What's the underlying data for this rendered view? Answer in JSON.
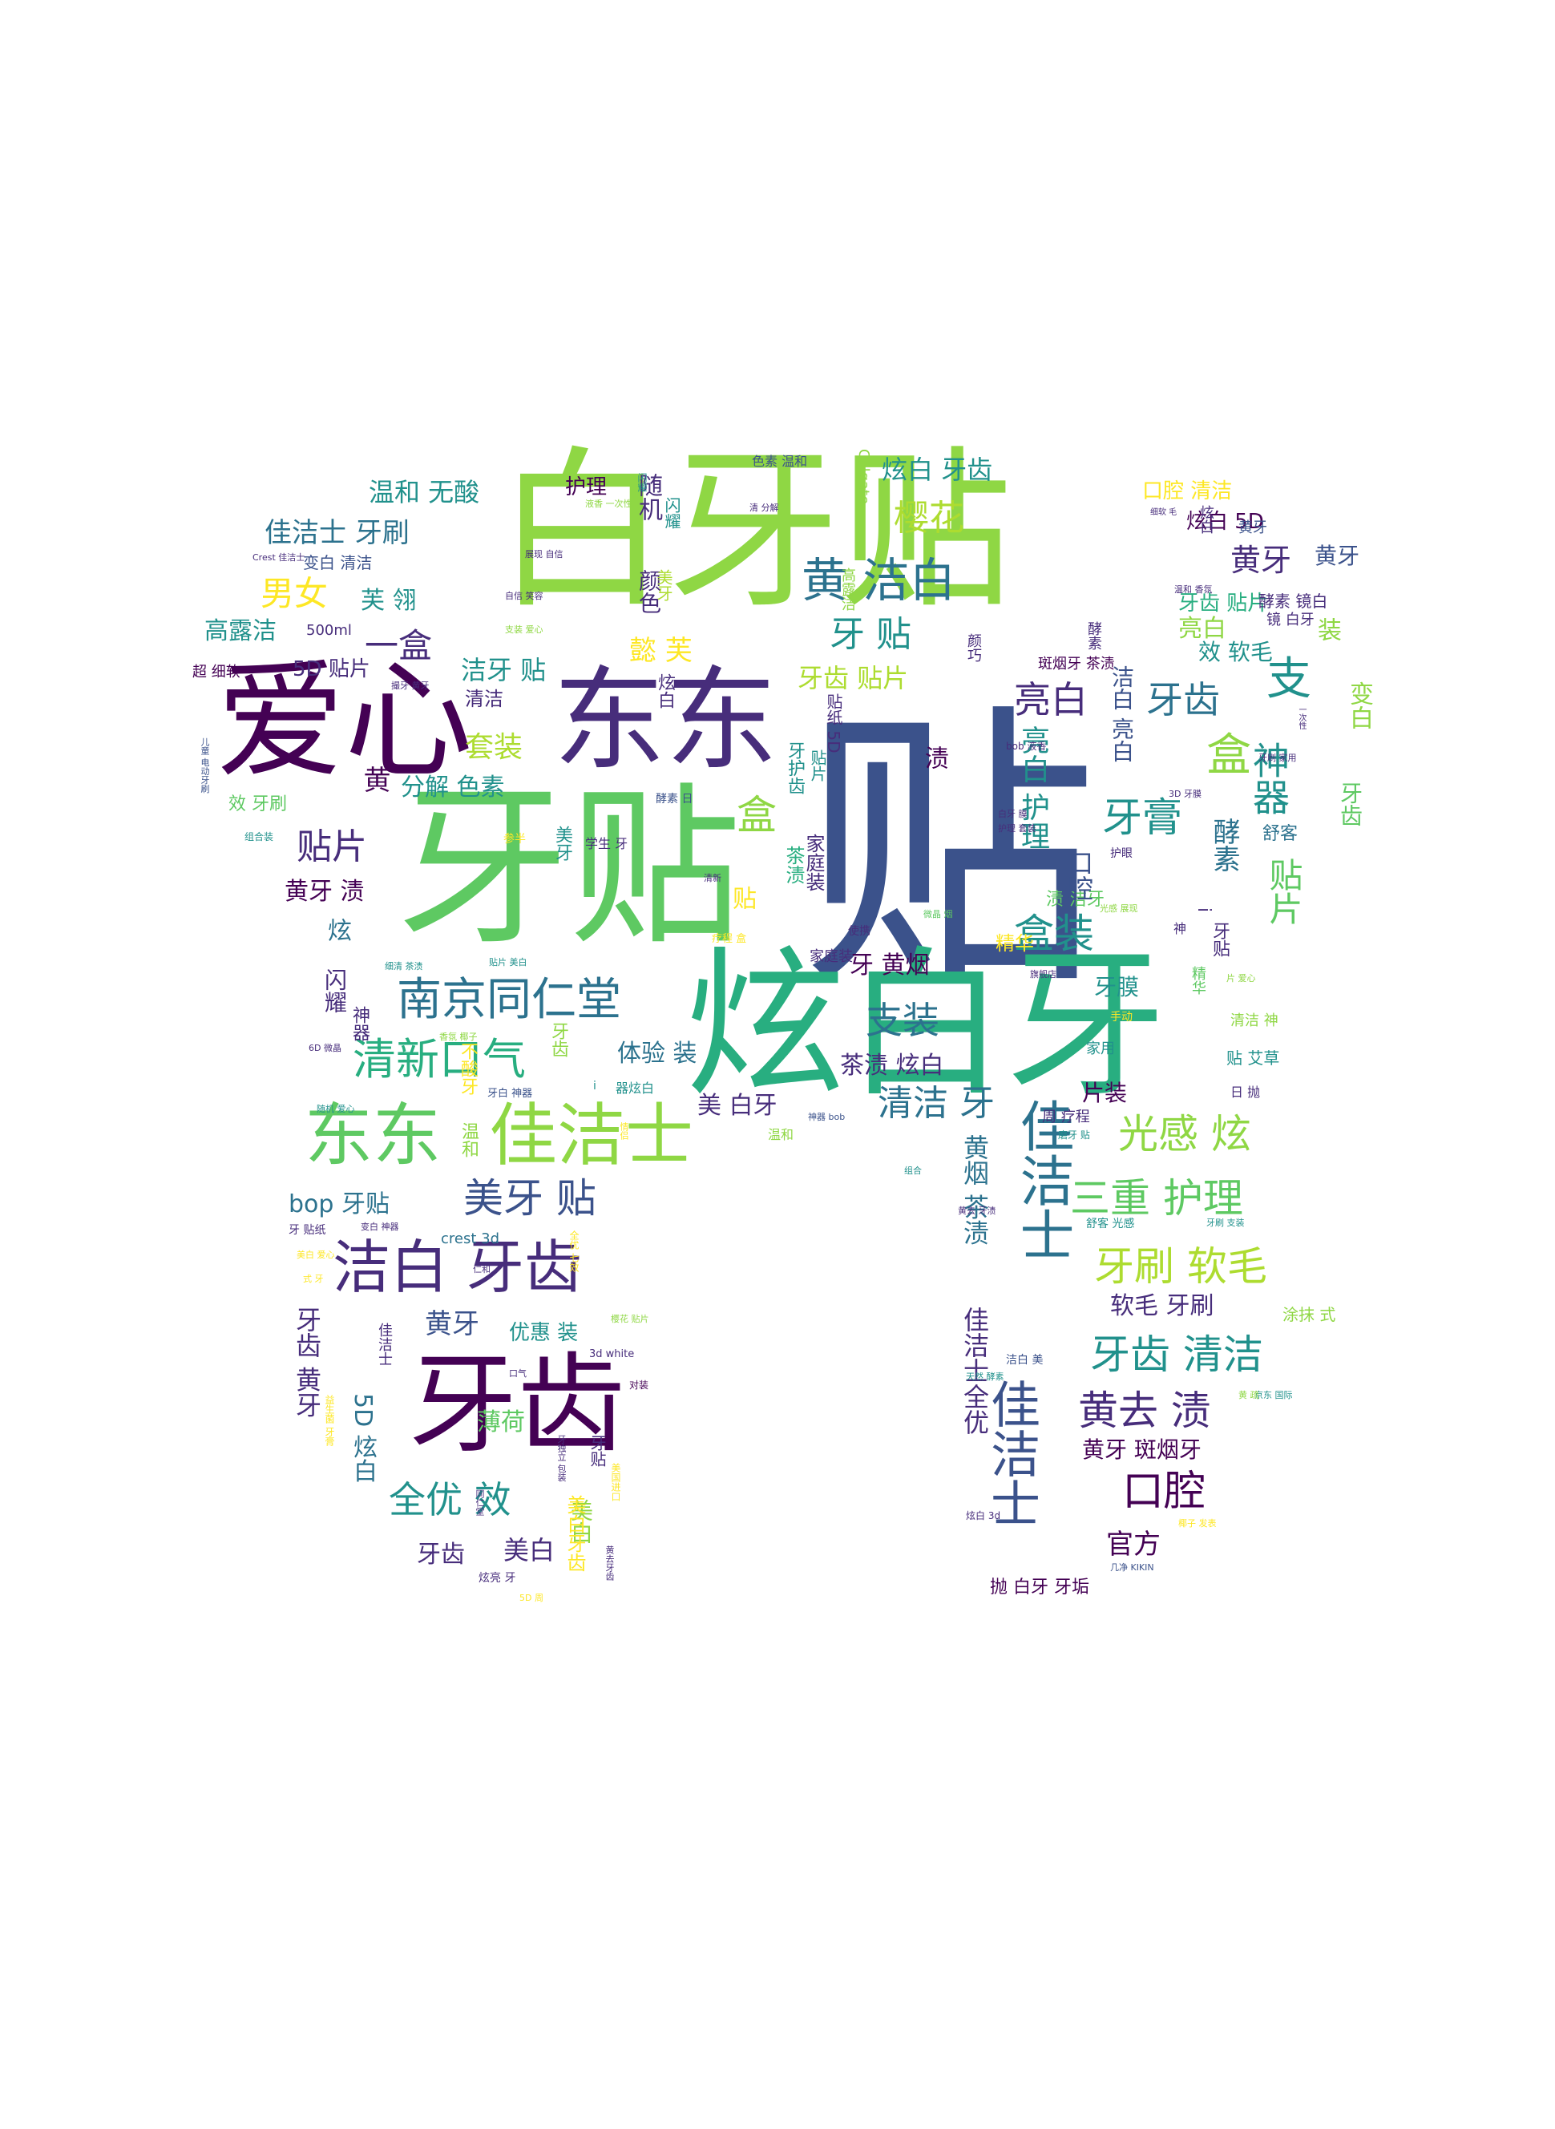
{
  "palette": [
    "#440154",
    "#3b528b",
    "#21918c",
    "#5ec962",
    "#fde725",
    "#8fd744",
    "#2c728e",
    "#472d7b",
    "#28ae80",
    "#addc30"
  ],
  "words": [
    {
      "text": "贴",
      "color": "#3b528b"
    },
    {
      "text": "白牙贴",
      "color": "#8fd744"
    },
    {
      "text": "牙贴",
      "color": "#5ec962"
    },
    {
      "text": "炫白牙",
      "color": "#28ae80"
    },
    {
      "text": "爱心",
      "color": "#440154"
    },
    {
      "text": "东东",
      "color": "#472d7b"
    },
    {
      "text": "牙齿",
      "color": "#440154"
    },
    {
      "text": "东东",
      "color": "#5ec962"
    },
    {
      "text": "佳洁士",
      "color": "#8fd744"
    },
    {
      "text": "洁白 牙齿",
      "color": "#472d7b"
    },
    {
      "text": "南京同仁堂",
      "color": "#2c728e"
    },
    {
      "text": "清新口气",
      "color": "#28ae80"
    },
    {
      "text": "黄 洁白",
      "color": "#2c728e"
    },
    {
      "text": "佳洁士",
      "color": "#2c728e"
    },
    {
      "text": "佳洁士",
      "color": "#3b528b"
    },
    {
      "text": "牙齿 清洁",
      "color": "#21918c"
    },
    {
      "text": "三重 护理",
      "color": "#5ec962"
    },
    {
      "text": "牙刷 软毛",
      "color": "#addc30"
    },
    {
      "text": "美牙 贴",
      "color": "#3b528b"
    },
    {
      "text": "光感 炫",
      "color": "#8fd744"
    },
    {
      "text": "全优 效",
      "color": "#21918c"
    },
    {
      "text": "口腔",
      "color": "#440154"
    },
    {
      "text": "黄去 渍",
      "color": "#472d7b"
    },
    {
      "text": "清洁 牙",
      "color": "#2c728e"
    },
    {
      "text": "支装",
      "color": "#2c728e"
    },
    {
      "text": "盒装",
      "color": "#21918c"
    },
    {
      "text": "牙膏",
      "color": "#21918c"
    },
    {
      "text": "亮白",
      "color": "#472d7b"
    },
    {
      "text": "牙齿",
      "color": "#2c728e"
    },
    {
      "text": "樱花",
      "color": "#addc30"
    },
    {
      "text": "牙 贴",
      "color": "#21918c"
    },
    {
      "text": "男女",
      "color": "#fde725"
    },
    {
      "text": "一盒",
      "color": "#472d7b"
    },
    {
      "text": "贴片",
      "color": "#472d7b"
    },
    {
      "text": "黄牙",
      "color": "#472d7b"
    },
    {
      "text": "套装",
      "color": "#addc30"
    },
    {
      "text": "盒",
      "color": "#8fd744"
    },
    {
      "text": "支",
      "color": "#21918c"
    },
    {
      "text": "炫白 牙齿",
      "color": "#21918c"
    },
    {
      "text": "佳洁士 牙刷",
      "color": "#2c728e"
    },
    {
      "text": "温和 无酸",
      "color": "#21918c"
    },
    {
      "text": "高露洁",
      "color": "#21918c"
    },
    {
      "text": "洁牙 贴",
      "color": "#21918c"
    },
    {
      "text": "牙齿 贴片",
      "color": "#addc30"
    },
    {
      "text": "懿 芙",
      "color": "#fde725"
    },
    {
      "text": "分解 色素",
      "color": "#21918c"
    },
    {
      "text": "黄牙 渍",
      "color": "#440154"
    },
    {
      "text": "牙 黄烟",
      "color": "#440154"
    },
    {
      "text": "茶渍 炫白",
      "color": "#472d7b"
    },
    {
      "text": "体验 装",
      "color": "#2c728e"
    },
    {
      "text": "美 白牙",
      "color": "#472d7b"
    },
    {
      "text": "bop 牙贴",
      "color": "#2c728e"
    },
    {
      "text": "黄牙",
      "color": "#3b528b"
    },
    {
      "text": "软毛 牙刷",
      "color": "#472d7b"
    },
    {
      "text": "官方",
      "color": "#440154"
    },
    {
      "text": "美白",
      "color": "#472d7b"
    },
    {
      "text": "牙齿",
      "color": "#472d7b"
    },
    {
      "text": "薄荷",
      "color": "#5ec962"
    },
    {
      "text": "优惠 装",
      "color": "#21918c"
    },
    {
      "text": "黄牙 斑烟牙",
      "color": "#440154"
    },
    {
      "text": "片装",
      "color": "#440154"
    },
    {
      "text": "牙膜",
      "color": "#21918c"
    },
    {
      "text": "精华",
      "color": "#fde725"
    },
    {
      "text": "5D 贴片",
      "color": "#472d7b"
    },
    {
      "text": "芙 翎",
      "color": "#21918c"
    },
    {
      "text": "护理",
      "color": "#440154"
    },
    {
      "text": "炫白 5D",
      "color": "#440154"
    },
    {
      "text": "口腔 清洁",
      "color": "#fde725"
    },
    {
      "text": "黄牙",
      "color": "#3b528b"
    },
    {
      "text": "效 软毛",
      "color": "#21918c"
    },
    {
      "text": "斑烟牙 茶渍",
      "color": "#440154"
    },
    {
      "text": "牙齿 贴片",
      "color": "#28ae80"
    },
    {
      "text": "清洁",
      "color": "#472d7b"
    },
    {
      "text": "crest 3d",
      "color": "#2c728e"
    },
    {
      "text": "抛 白牙 牙垢",
      "color": "#440154"
    },
    {
      "text": "贴 艾草",
      "color": "#21918c"
    },
    {
      "text": "涂抹 式",
      "color": "#8fd744"
    },
    {
      "text": "舒客",
      "color": "#2c728e"
    },
    {
      "text": "渍 洁牙",
      "color": "#5ec962"
    },
    {
      "text": "效 牙刷",
      "color": "#5ec962"
    },
    {
      "text": "500ml",
      "color": "#472d7b"
    },
    {
      "text": "超 细软",
      "color": "#440154"
    },
    {
      "text": "变白 清洁",
      "color": "#3b528b"
    },
    {
      "text": "黄牙",
      "color": "#3b528b"
    },
    {
      "text": "亮白",
      "color": "#8fd744"
    },
    {
      "text": "酵素 镜白",
      "color": "#472d7b"
    },
    {
      "text": "镜 白牙",
      "color": "#472d7b"
    },
    {
      "text": "家用",
      "color": "#21918c"
    },
    {
      "text": "周 疗程",
      "color": "#472d7b"
    },
    {
      "text": "清洁 神",
      "color": "#8fd744"
    },
    {
      "text": "日 抛",
      "color": "#472d7b"
    },
    {
      "text": "手动",
      "color": "#fde725"
    },
    {
      "text": "3d white",
      "color": "#472d7b"
    },
    {
      "text": "对装",
      "color": "#440154"
    },
    {
      "text": "色素 温和",
      "color": "#3b528b"
    }
  ],
  "vertical_words": [
    {
      "text": "神器",
      "color": "#21918c"
    },
    {
      "text": "贴片",
      "color": "#5ec962"
    },
    {
      "text": "酵素",
      "color": "#2c728e"
    },
    {
      "text": "亮白 护理",
      "color": "#21918c"
    },
    {
      "text": "口腔",
      "color": "#3b528b"
    },
    {
      "text": "洁白 亮白",
      "color": "#3b528b"
    },
    {
      "text": "牙齿",
      "color": "#5ec962"
    },
    {
      "text": "变白",
      "color": "#8fd744"
    },
    {
      "text": "装",
      "color": "#8fd744"
    },
    {
      "text": "贴",
      "color": "#fde725"
    },
    {
      "text": "盒",
      "color": "#8fd744"
    },
    {
      "text": "茶渍",
      "color": "#28ae80"
    },
    {
      "text": "牙护齿",
      "color": "#21918c"
    },
    {
      "text": "家庭装",
      "color": "#472d7b"
    },
    {
      "text": "美牙",
      "color": "#21918c"
    },
    {
      "text": "炫",
      "color": "#2c728e"
    },
    {
      "text": "闪耀",
      "color": "#472d7b"
    },
    {
      "text": "黄",
      "color": "#440154"
    },
    {
      "text": "颜色",
      "color": "#472d7b"
    },
    {
      "text": "随机",
      "color": "#472d7b"
    },
    {
      "text": "闪耀",
      "color": "#21918c"
    },
    {
      "text": "黄烟 茶渍",
      "color": "#2c728e"
    },
    {
      "text": "佳洁士全优",
      "color": "#472d7b"
    },
    {
      "text": "牙齿 黄牙",
      "color": "#472d7b"
    },
    {
      "text": "5D 炫白",
      "color": "#2c728e"
    },
    {
      "text": "牙齿",
      "color": "#8fd744"
    },
    {
      "text": "贴片",
      "color": "#21918c"
    },
    {
      "text": "神器",
      "color": "#472d7b"
    },
    {
      "text": "美白",
      "color": "#8fd744"
    },
    {
      "text": "温和",
      "color": "#8fd744"
    },
    {
      "text": "不酸牙",
      "color": "#fde725"
    },
    {
      "text": "渍",
      "color": "#440154"
    },
    {
      "text": "贴纸 5D",
      "color": "#472d7b"
    },
    {
      "text": "炫白",
      "color": "#472d7b"
    },
    {
      "text": "美白牙齿",
      "color": "#fde725"
    },
    {
      "text": "牙贴",
      "color": "#472d7b"
    },
    {
      "text": "佳洁士",
      "color": "#472d7b"
    },
    {
      "text": "精华",
      "color": "#5ec962"
    },
    {
      "text": "Colgate",
      "color": "#8fd744"
    },
    {
      "text": "高露洁",
      "color": "#8fd744"
    },
    {
      "text": "闪耀",
      "color": "#21918c"
    },
    {
      "text": "美牙",
      "color": "#addc30"
    },
    {
      "text": "酵素",
      "color": "#472d7b"
    },
    {
      "text": "颜巧",
      "color": "#472d7b"
    },
    {
      "text": "i",
      "color": "#472d7b"
    },
    {
      "text": "牙贴",
      "color": "#472d7b"
    },
    {
      "text": "神",
      "color": "#472d7b"
    },
    {
      "text": "炫白",
      "color": "#472d7b"
    }
  ],
  "small_words": [
    {
      "text": "展现 自信",
      "color": "#472d7b"
    },
    {
      "text": "自信 笑容",
      "color": "#472d7b"
    },
    {
      "text": "Crest 佳洁士",
      "color": "#472d7b"
    },
    {
      "text": "家庭装",
      "color": "#472d7b"
    },
    {
      "text": "组合装",
      "color": "#21918c"
    },
    {
      "text": "儿童 电动牙刷",
      "color": "#3b528b"
    },
    {
      "text": "学生 牙",
      "color": "#472d7b"
    },
    {
      "text": "酵素 日",
      "color": "#3b528b"
    },
    {
      "text": "参半",
      "color": "#fde725"
    },
    {
      "text": "清新",
      "color": "#472d7b"
    },
    {
      "text": "使携",
      "color": "#472d7b"
    },
    {
      "text": "微晶 烟",
      "color": "#5ec962"
    },
    {
      "text": "疗程 盒",
      "color": "#fde725"
    },
    {
      "text": "细清 茶渍",
      "color": "#21918c"
    },
    {
      "text": "贴片 美白",
      "color": "#21918c"
    },
    {
      "text": "6D 微晶",
      "color": "#472d7b"
    },
    {
      "text": "香氛 椰子",
      "color": "#8fd744"
    },
    {
      "text": "牙白 神器",
      "color": "#3b528b"
    },
    {
      "text": "器炫白",
      "color": "#21918c"
    },
    {
      "text": "i",
      "color": "#21918c"
    },
    {
      "text": "温和",
      "color": "#8fd744"
    },
    {
      "text": "神器 bob",
      "color": "#3b528b"
    },
    {
      "text": "随机 爱心",
      "color": "#21918c"
    },
    {
      "text": "变白 神器",
      "color": "#472d7b"
    },
    {
      "text": "牙 贴纸",
      "color": "#472d7b"
    },
    {
      "text": "仁和",
      "color": "#472d7b"
    },
    {
      "text": "口气",
      "color": "#472d7b"
    },
    {
      "text": "樱花 贴片",
      "color": "#8fd744"
    },
    {
      "text": "天然 酵素",
      "color": "#21918c"
    },
    {
      "text": "京东 国际",
      "color": "#21918c"
    },
    {
      "text": "3D 牙膜",
      "color": "#472d7b"
    },
    {
      "text": "bob 液香",
      "color": "#472d7b"
    },
    {
      "text": "护眼",
      "color": "#472d7b"
    },
    {
      "text": "旗舰店",
      "color": "#472d7b"
    },
    {
      "text": "牙刷 家用",
      "color": "#472d7b"
    },
    {
      "text": "牙刷 支装",
      "color": "#21918c"
    },
    {
      "text": "舒客 光感",
      "color": "#21918c"
    },
    {
      "text": "磨牙 贴",
      "color": "#21918c"
    },
    {
      "text": "组合",
      "color": "#21918c"
    },
    {
      "text": "黄去 牙渍",
      "color": "#472d7b"
    },
    {
      "text": "洁白 美",
      "color": "#3b528b"
    },
    {
      "text": "炫白 3d",
      "color": "#472d7b"
    },
    {
      "text": "几净 KIKIN",
      "color": "#3b528b"
    },
    {
      "text": "白牙 膜",
      "color": "#472d7b"
    },
    {
      "text": "护理 套装",
      "color": "#472d7b"
    },
    {
      "text": "光感 展现",
      "color": "#8fd744"
    },
    {
      "text": "片 爱心",
      "color": "#8fd744"
    },
    {
      "text": "温和 香氛",
      "color": "#472d7b"
    },
    {
      "text": "一次性",
      "color": "#472d7b"
    },
    {
      "text": "细软 毛",
      "color": "#472d7b"
    },
    {
      "text": "液香 一次性",
      "color": "#8fd744"
    },
    {
      "text": "清 分解",
      "color": "#472d7b"
    },
    {
      "text": "撮牙 黄牙",
      "color": "#472d7b"
    },
    {
      "text": "支装 爱心",
      "color": "#8fd744"
    },
    {
      "text": "美白 爱心",
      "color": "#fde725"
    },
    {
      "text": "益生菌 牙膏",
      "color": "#fde725"
    },
    {
      "text": "美国进口",
      "color": "#fde725"
    },
    {
      "text": "牙独立 包装",
      "color": "#472d7b"
    },
    {
      "text": "同仁堂",
      "color": "#472d7b"
    },
    {
      "text": "黄去牙齿",
      "color": "#472d7b"
    },
    {
      "text": "炫亮 牙",
      "color": "#472d7b"
    },
    {
      "text": "5D 周",
      "color": "#fde725"
    },
    {
      "text": "情侣",
      "color": "#fde725"
    },
    {
      "text": "全优 七效",
      "color": "#fde725"
    },
    {
      "text": "椰子 发表",
      "color": "#fde725"
    },
    {
      "text": "式 牙",
      "color": "#fde725"
    },
    {
      "text": "黄 疏",
      "color": "#8fd744"
    }
  ]
}
